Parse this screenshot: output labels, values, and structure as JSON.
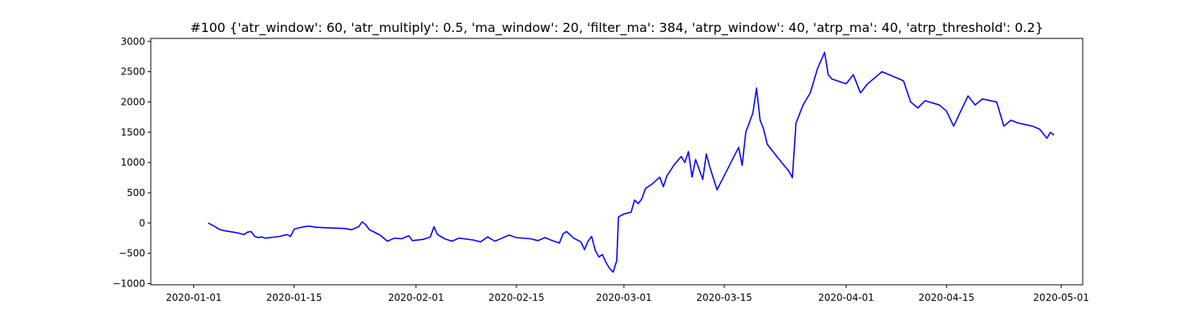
{
  "chart_data": {
    "type": "line",
    "title": "#100 {'atr_window': 60, 'atr_multiply': 0.5, 'ma_window': 20, 'filter_ma': 384, 'atrp_window': 40, 'atrp_ma': 40, 'atrp_threshold': 0.2}",
    "xlabel": "",
    "ylabel": "",
    "x_range": [
      "2019-12-26",
      "2020-05-04"
    ],
    "ylim": [
      -1020,
      3050
    ],
    "x_ticks": [
      "2020-01-01",
      "2020-01-15",
      "2020-02-01",
      "2020-02-15",
      "2020-03-01",
      "2020-03-15",
      "2020-04-01",
      "2020-04-15",
      "2020-05-01"
    ],
    "y_ticks": [
      -1000,
      -500,
      0,
      500,
      1000,
      1500,
      2000,
      2500,
      3000
    ],
    "grid": false,
    "legend": "none",
    "series": [
      {
        "color": "#0000ff",
        "points": [
          [
            "2020-01-03",
            0
          ],
          [
            "2020-01-03 12:00",
            -30
          ],
          [
            "2020-01-04",
            -60
          ],
          [
            "2020-01-04 12:00",
            -100
          ],
          [
            "2020-01-05",
            -120
          ],
          [
            "2020-01-07",
            -160
          ],
          [
            "2020-01-08",
            -190
          ],
          [
            "2020-01-08 12:00",
            -150
          ],
          [
            "2020-01-09",
            -140
          ],
          [
            "2020-01-09 12:00",
            -220
          ],
          [
            "2020-01-10",
            -240
          ],
          [
            "2020-01-10 12:00",
            -230
          ],
          [
            "2020-01-11",
            -250
          ],
          [
            "2020-01-13",
            -220
          ],
          [
            "2020-01-14",
            -190
          ],
          [
            "2020-01-14 12:00",
            -220
          ],
          [
            "2020-01-15",
            -100
          ],
          [
            "2020-01-16",
            -70
          ],
          [
            "2020-01-17",
            -50
          ],
          [
            "2020-01-18",
            -70
          ],
          [
            "2020-01-20",
            -80
          ],
          [
            "2020-01-22",
            -90
          ],
          [
            "2020-01-23",
            -110
          ],
          [
            "2020-01-24",
            -60
          ],
          [
            "2020-01-24 12:00",
            20
          ],
          [
            "2020-01-25",
            -30
          ],
          [
            "2020-01-25 12:00",
            -110
          ],
          [
            "2020-01-27",
            -200
          ],
          [
            "2020-01-28",
            -300
          ],
          [
            "2020-01-29",
            -250
          ],
          [
            "2020-01-30",
            -260
          ],
          [
            "2020-01-31",
            -210
          ],
          [
            "2020-01-31 12:00",
            -290
          ],
          [
            "2020-02-02",
            -270
          ],
          [
            "2020-02-03",
            -230
          ],
          [
            "2020-02-03 12:00",
            -60
          ],
          [
            "2020-02-04",
            -190
          ],
          [
            "2020-02-05",
            -260
          ],
          [
            "2020-02-06",
            -300
          ],
          [
            "2020-02-07",
            -250
          ],
          [
            "2020-02-09",
            -280
          ],
          [
            "2020-02-10",
            -310
          ],
          [
            "2020-02-11",
            -230
          ],
          [
            "2020-02-12",
            -300
          ],
          [
            "2020-02-13",
            -250
          ],
          [
            "2020-02-14",
            -200
          ],
          [
            "2020-02-15",
            -240
          ],
          [
            "2020-02-17",
            -260
          ],
          [
            "2020-02-18",
            -290
          ],
          [
            "2020-02-19",
            -240
          ],
          [
            "2020-02-20",
            -290
          ],
          [
            "2020-02-21",
            -330
          ],
          [
            "2020-02-21 12:00",
            -180
          ],
          [
            "2020-02-22",
            -140
          ],
          [
            "2020-02-23",
            -250
          ],
          [
            "2020-02-24",
            -310
          ],
          [
            "2020-02-24 12:00",
            -440
          ],
          [
            "2020-02-25",
            -300
          ],
          [
            "2020-02-25 12:00",
            -220
          ],
          [
            "2020-02-26",
            -450
          ],
          [
            "2020-02-26 12:00",
            -560
          ],
          [
            "2020-02-27",
            -520
          ],
          [
            "2020-02-27 12:00",
            -650
          ],
          [
            "2020-02-28",
            -750
          ],
          [
            "2020-02-28 12:00",
            -810
          ],
          [
            "2020-02-29",
            -620
          ],
          [
            "2020-02-29 06:00",
            100
          ],
          [
            "2020-03-01",
            150
          ],
          [
            "2020-03-02",
            180
          ],
          [
            "2020-03-02 12:00",
            380
          ],
          [
            "2020-03-03",
            320
          ],
          [
            "2020-03-03 12:00",
            400
          ],
          [
            "2020-03-04",
            570
          ],
          [
            "2020-03-05",
            650
          ],
          [
            "2020-03-06",
            760
          ],
          [
            "2020-03-06 12:00",
            600
          ],
          [
            "2020-03-07",
            780
          ],
          [
            "2020-03-08",
            960
          ],
          [
            "2020-03-09",
            1100
          ],
          [
            "2020-03-09 12:00",
            1000
          ],
          [
            "2020-03-10",
            1180
          ],
          [
            "2020-03-10 12:00",
            760
          ],
          [
            "2020-03-11",
            1050
          ],
          [
            "2020-03-12",
            720
          ],
          [
            "2020-03-12 12:00",
            1140
          ],
          [
            "2020-03-13",
            920
          ],
          [
            "2020-03-14",
            550
          ],
          [
            "2020-03-17",
            1250
          ],
          [
            "2020-03-17 12:00",
            950
          ],
          [
            "2020-03-18",
            1500
          ],
          [
            "2020-03-19",
            1820
          ],
          [
            "2020-03-19 12:00",
            2230
          ],
          [
            "2020-03-20",
            1700
          ],
          [
            "2020-03-20 12:00",
            1550
          ],
          [
            "2020-03-21",
            1300
          ],
          [
            "2020-03-23",
            1000
          ],
          [
            "2020-03-24",
            860
          ],
          [
            "2020-03-24 12:00",
            750
          ],
          [
            "2020-03-25",
            1650
          ],
          [
            "2020-03-26",
            1950
          ],
          [
            "2020-03-27",
            2150
          ],
          [
            "2020-03-28",
            2550
          ],
          [
            "2020-03-29",
            2820
          ],
          [
            "2020-03-29 12:00",
            2450
          ],
          [
            "2020-03-30",
            2380
          ],
          [
            "2020-04-01",
            2300
          ],
          [
            "2020-04-02",
            2450
          ],
          [
            "2020-04-03",
            2150
          ],
          [
            "2020-04-04",
            2300
          ],
          [
            "2020-04-06",
            2500
          ],
          [
            "2020-04-07",
            2450
          ],
          [
            "2020-04-09",
            2350
          ],
          [
            "2020-04-10",
            2000
          ],
          [
            "2020-04-11",
            1900
          ],
          [
            "2020-04-12",
            2020
          ],
          [
            "2020-04-14",
            1950
          ],
          [
            "2020-04-15",
            1850
          ],
          [
            "2020-04-16",
            1600
          ],
          [
            "2020-04-17",
            1850
          ],
          [
            "2020-04-18",
            2100
          ],
          [
            "2020-04-19",
            1950
          ],
          [
            "2020-04-20",
            2050
          ],
          [
            "2020-04-22",
            2000
          ],
          [
            "2020-04-23",
            1600
          ],
          [
            "2020-04-24",
            1700
          ],
          [
            "2020-04-25",
            1650
          ],
          [
            "2020-04-27",
            1600
          ],
          [
            "2020-04-28",
            1550
          ],
          [
            "2020-04-29",
            1400
          ],
          [
            "2020-04-29 12:00",
            1500
          ],
          [
            "2020-04-30",
            1450
          ]
        ]
      }
    ]
  }
}
